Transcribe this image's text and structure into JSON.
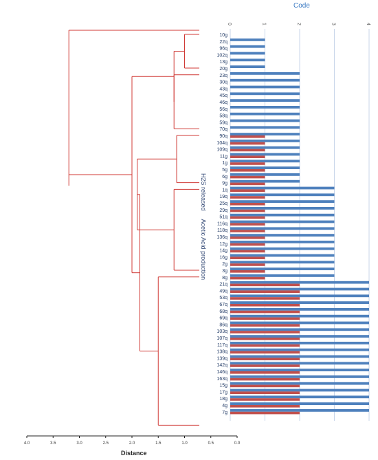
{
  "chart_data": [
    {
      "type": "dendrogram",
      "xlabel": "Distance",
      "xticks": [
        "4.0",
        "3.5",
        "3.0",
        "2.5",
        "2.0",
        "1.5",
        "1.0",
        "0.5",
        "0.0"
      ],
      "xlim": [
        4.0,
        0.0
      ],
      "merges": [
        {
          "id": "A",
          "height": 1.0,
          "start": 0,
          "end": 5
        },
        {
          "id": "B",
          "height": 1.2,
          "start": 6,
          "end": 14
        },
        {
          "id": "C",
          "height": 1.15,
          "start": 15,
          "end": 22
        },
        {
          "id": "D",
          "height": 1.2,
          "start": 23,
          "end": 35
        },
        {
          "id": "E",
          "height": 1.5,
          "start": 36,
          "end": 58
        },
        {
          "id": "AB",
          "height": 1.2,
          "children": [
            "A",
            "B"
          ]
        },
        {
          "id": "CD",
          "height": 1.9,
          "children": [
            "C",
            "D"
          ]
        },
        {
          "id": "CDE",
          "height": 1.85,
          "children": [
            "CD",
            "E"
          ]
        },
        {
          "id": "ABCDE",
          "height": 2.0,
          "children": [
            "AB",
            "CDE"
          ]
        },
        {
          "id": "root",
          "height": 3.2,
          "children": [
            "ABCDE"
          ]
        }
      ],
      "line_color": "#d03a36"
    },
    {
      "type": "bar",
      "title": "Code",
      "orientation": "horizontal",
      "xticks": [
        "0",
        "1",
        "2",
        "3",
        "4"
      ],
      "xlim": [
        0,
        4
      ],
      "categories": [
        "10g",
        "22q",
        "96q",
        "102q",
        "13g",
        "20g",
        "23q",
        "30q",
        "43q",
        "45q",
        "46q",
        "56q",
        "58q",
        "59q",
        "70q",
        "90q",
        "104q",
        "109q",
        "11g",
        "1g",
        "5g",
        "6g",
        "9g",
        "1q",
        "19q",
        "25q",
        "29q",
        "51q",
        "116q",
        "118q",
        "136q",
        "12g",
        "14g",
        "16g",
        "2g",
        "3g",
        "8g",
        "21q",
        "49q",
        "53q",
        "67q",
        "68q",
        "69q",
        "86q",
        "103q",
        "107q",
        "117q",
        "138q",
        "139q",
        "142q",
        "146q",
        "163q",
        "15g",
        "17g",
        "18g",
        "4g",
        "7g"
      ],
      "series": [
        {
          "name": "H2S released",
          "color": "#4f81bd",
          "values": [
            0,
            1,
            1,
            1,
            1,
            1,
            2,
            2,
            2,
            2,
            2,
            2,
            2,
            2,
            2,
            2,
            2,
            2,
            2,
            2,
            2,
            2,
            2,
            3,
            3,
            3,
            3,
            3,
            3,
            3,
            3,
            3,
            3,
            3,
            3,
            3,
            3,
            4,
            4,
            4,
            4,
            4,
            4,
            4,
            4,
            4,
            4,
            4,
            4,
            4,
            4,
            4,
            4,
            4,
            4,
            4,
            4
          ]
        },
        {
          "name": "Acetic Acid production",
          "color": "#c0504d",
          "values": [
            0,
            0,
            0,
            0,
            0,
            0,
            0,
            0,
            0,
            0,
            0,
            0,
            0,
            0,
            0,
            1,
            1,
            1,
            1,
            1,
            1,
            1,
            1,
            1,
            1,
            1,
            1,
            1,
            1,
            1,
            1,
            1,
            1,
            1,
            1,
            1,
            1,
            2,
            2,
            2,
            2,
            2,
            2,
            2,
            2,
            2,
            2,
            2,
            2,
            2,
            2,
            2,
            2,
            2,
            2,
            2,
            2
          ]
        }
      ]
    }
  ]
}
